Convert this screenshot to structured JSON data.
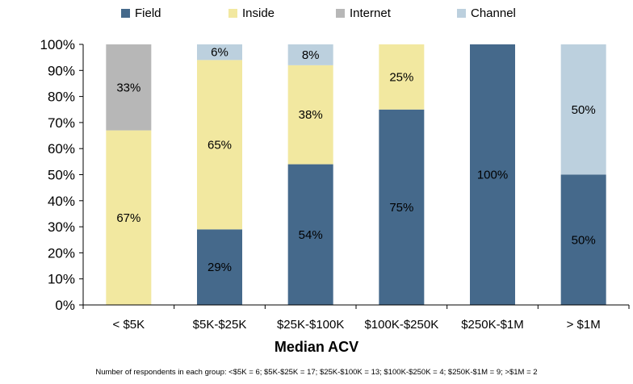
{
  "chart_data": {
    "type": "bar",
    "stacked": true,
    "categories": [
      "< $5K",
      "$5K-$25K",
      "$25K-$100K",
      "$100K-$250K",
      "$250K-$1M",
      "> $1M"
    ],
    "series": [
      {
        "name": "Field",
        "color": "#45698B",
        "values": [
          0,
          29,
          54,
          75,
          100,
          50
        ],
        "labels": [
          "",
          "29%",
          "54%",
          "75%",
          "100%",
          "50%"
        ]
      },
      {
        "name": "Inside",
        "color": "#F2E8A0",
        "values": [
          67,
          65,
          38,
          25,
          0,
          0
        ],
        "labels": [
          "67%",
          "65%",
          "38%",
          "25%",
          "",
          ""
        ]
      },
      {
        "name": "Internet",
        "color": "#B7B7B7",
        "values": [
          33,
          0,
          0,
          0,
          0,
          0
        ],
        "labels": [
          "33%",
          "",
          "",
          "",
          "",
          ""
        ]
      },
      {
        "name": "Channel",
        "color": "#BCD0DE",
        "values": [
          0,
          6,
          8,
          0,
          0,
          50
        ],
        "labels": [
          "",
          "6%",
          "8%",
          "",
          "",
          "50%"
        ]
      }
    ],
    "yticks": [
      "0%",
      "10%",
      "20%",
      "30%",
      "40%",
      "50%",
      "60%",
      "70%",
      "80%",
      "90%",
      "100%"
    ],
    "ylim": [
      0,
      100
    ],
    "xlabel": "Median ACV",
    "legend": "top",
    "grid": false
  },
  "footnote": "Number of respondents in each group: <$5K = 6; $5K-$25K = 17; $25K-$100K = 13; $100K-$250K = 4; $250K-$1M = 9; >$1M = 2"
}
